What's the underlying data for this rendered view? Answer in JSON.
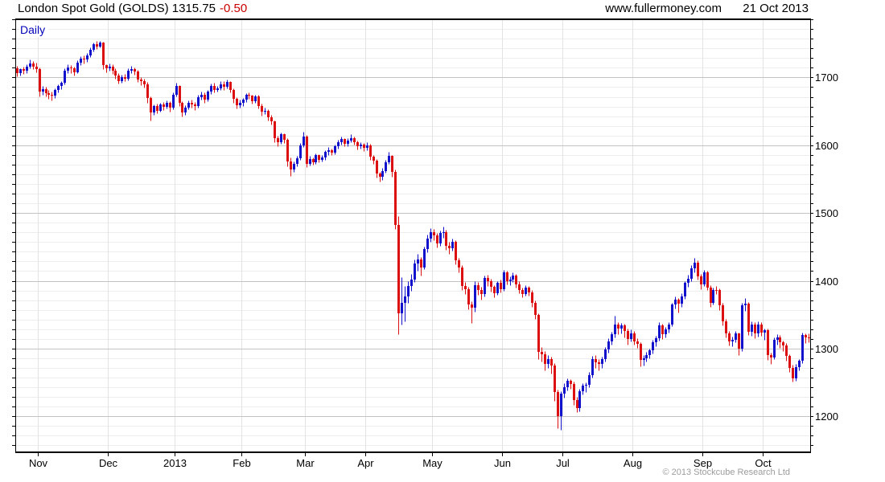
{
  "header": {
    "title": "London Spot Gold (GOLDS) 1315.75",
    "change": "-0.50",
    "website": "www.fullermoney.com",
    "date": "21 Oct 2013"
  },
  "chart": {
    "frequency_label": "Daily",
    "copyright": "© 2013 Stockcube Research Ltd"
  },
  "colors": {
    "up": "#1212cc",
    "down": "#dc1010",
    "grid_minor": "#ededed",
    "grid_major": "#c3c3c3",
    "grid_vertical": "#e3e3e3",
    "axis": "#000000",
    "label": "#000000"
  },
  "chart_data": {
    "type": "candlestick",
    "title": "London Spot Gold (GOLDS)",
    "frequency": "Daily",
    "last_price": 1315.75,
    "change": -0.5,
    "grid": true,
    "ylim": [
      1147,
      1787
    ],
    "y_ticks": [
      1200,
      1300,
      1400,
      1500,
      1600,
      1700
    ],
    "minor_grid_divisions_per_major": 7,
    "x_tick_labels": [
      "Nov",
      "Dec",
      "2013",
      "Feb",
      "Mar",
      "Apr",
      "May",
      "Jun",
      "Jul",
      "Aug",
      "Sep",
      "Oct"
    ],
    "month_start_indices": [
      7,
      29,
      50,
      71,
      91,
      110,
      131,
      153,
      172,
      194,
      216,
      235
    ],
    "bars_format": [
      "open",
      "high",
      "low",
      "close"
    ],
    "bars": [
      [
        1714,
        1717,
        1702,
        1707
      ],
      [
        1707,
        1714,
        1703,
        1712
      ],
      [
        1712,
        1716,
        1705,
        1710
      ],
      [
        1710,
        1719,
        1707,
        1716
      ],
      [
        1716,
        1726,
        1713,
        1721
      ],
      [
        1721,
        1724,
        1712,
        1716
      ],
      [
        1716,
        1722,
        1708,
        1712
      ],
      [
        1712,
        1715,
        1672,
        1679
      ],
      [
        1679,
        1687,
        1674,
        1683
      ],
      [
        1683,
        1686,
        1672,
        1677
      ],
      [
        1677,
        1682,
        1669,
        1675
      ],
      [
        1675,
        1679,
        1666,
        1673
      ],
      [
        1673,
        1684,
        1670,
        1681
      ],
      [
        1681,
        1690,
        1678,
        1687
      ],
      [
        1687,
        1695,
        1683,
        1692
      ],
      [
        1692,
        1713,
        1690,
        1710
      ],
      [
        1710,
        1719,
        1706,
        1715
      ],
      [
        1715,
        1718,
        1707,
        1713
      ],
      [
        1713,
        1716,
        1703,
        1708
      ],
      [
        1708,
        1725,
        1706,
        1722
      ],
      [
        1722,
        1731,
        1718,
        1728
      ],
      [
        1728,
        1732,
        1721,
        1726
      ],
      [
        1726,
        1736,
        1723,
        1733
      ],
      [
        1733,
        1744,
        1730,
        1741
      ],
      [
        1741,
        1752,
        1738,
        1749
      ],
      [
        1749,
        1754,
        1742,
        1746
      ],
      [
        1746,
        1754,
        1744,
        1751
      ],
      [
        1751,
        1753,
        1712,
        1718
      ],
      [
        1718,
        1720,
        1708,
        1714
      ],
      [
        1714,
        1721,
        1710,
        1716
      ],
      [
        1716,
        1719,
        1705,
        1710
      ],
      [
        1710,
        1713,
        1698,
        1703
      ],
      [
        1703,
        1706,
        1691,
        1695
      ],
      [
        1695,
        1704,
        1692,
        1701
      ],
      [
        1701,
        1705,
        1694,
        1698
      ],
      [
        1698,
        1713,
        1696,
        1710
      ],
      [
        1710,
        1717,
        1707,
        1712
      ],
      [
        1712,
        1715,
        1704,
        1709
      ],
      [
        1709,
        1711,
        1693,
        1697
      ],
      [
        1697,
        1700,
        1689,
        1694
      ],
      [
        1694,
        1698,
        1685,
        1690
      ],
      [
        1690,
        1693,
        1662,
        1670
      ],
      [
        1670,
        1672,
        1636,
        1648
      ],
      [
        1648,
        1660,
        1645,
        1658
      ],
      [
        1658,
        1661,
        1647,
        1651
      ],
      [
        1651,
        1663,
        1649,
        1660
      ],
      [
        1660,
        1664,
        1652,
        1657
      ],
      [
        1657,
        1666,
        1654,
        1663
      ],
      [
        1663,
        1665,
        1650,
        1655
      ],
      [
        1655,
        1678,
        1653,
        1675
      ],
      [
        1675,
        1692,
        1672,
        1687
      ],
      [
        1687,
        1689,
        1658,
        1662
      ],
      [
        1662,
        1665,
        1642,
        1648
      ],
      [
        1648,
        1659,
        1645,
        1656
      ],
      [
        1656,
        1666,
        1653,
        1662
      ],
      [
        1662,
        1667,
        1655,
        1660
      ],
      [
        1660,
        1664,
        1652,
        1658
      ],
      [
        1658,
        1674,
        1656,
        1671
      ],
      [
        1671,
        1679,
        1667,
        1675
      ],
      [
        1675,
        1678,
        1663,
        1667
      ],
      [
        1667,
        1682,
        1665,
        1679
      ],
      [
        1679,
        1691,
        1676,
        1688
      ],
      [
        1688,
        1692,
        1678,
        1682
      ],
      [
        1682,
        1688,
        1679,
        1684
      ],
      [
        1684,
        1695,
        1681,
        1690
      ],
      [
        1690,
        1694,
        1682,
        1686
      ],
      [
        1686,
        1697,
        1684,
        1693
      ],
      [
        1693,
        1695,
        1678,
        1682
      ],
      [
        1682,
        1684,
        1663,
        1668
      ],
      [
        1668,
        1671,
        1654,
        1659
      ],
      [
        1659,
        1667,
        1656,
        1662
      ],
      [
        1662,
        1670,
        1658,
        1667
      ],
      [
        1667,
        1677,
        1664,
        1674
      ],
      [
        1674,
        1678,
        1668,
        1673
      ],
      [
        1673,
        1675,
        1661,
        1665
      ],
      [
        1665,
        1675,
        1662,
        1672
      ],
      [
        1672,
        1674,
        1654,
        1658
      ],
      [
        1658,
        1661,
        1644,
        1649
      ],
      [
        1649,
        1655,
        1646,
        1651
      ],
      [
        1651,
        1653,
        1637,
        1641
      ],
      [
        1641,
        1645,
        1631,
        1635
      ],
      [
        1635,
        1637,
        1604,
        1610
      ],
      [
        1610,
        1614,
        1598,
        1605
      ],
      [
        1605,
        1619,
        1602,
        1616
      ],
      [
        1616,
        1618,
        1603,
        1608
      ],
      [
        1608,
        1610,
        1569,
        1576
      ],
      [
        1576,
        1582,
        1555,
        1564
      ],
      [
        1564,
        1576,
        1561,
        1572
      ],
      [
        1572,
        1584,
        1569,
        1581
      ],
      [
        1581,
        1603,
        1579,
        1600
      ],
      [
        1600,
        1620,
        1597,
        1613
      ],
      [
        1613,
        1615,
        1568,
        1572
      ],
      [
        1572,
        1584,
        1570,
        1580
      ],
      [
        1580,
        1582,
        1571,
        1575
      ],
      [
        1575,
        1588,
        1573,
        1585
      ],
      [
        1585,
        1587,
        1575,
        1579
      ],
      [
        1579,
        1586,
        1576,
        1582
      ],
      [
        1582,
        1593,
        1579,
        1590
      ],
      [
        1590,
        1597,
        1586,
        1593
      ],
      [
        1593,
        1595,
        1585,
        1589
      ],
      [
        1589,
        1601,
        1587,
        1598
      ],
      [
        1598,
        1608,
        1595,
        1605
      ],
      [
        1605,
        1613,
        1601,
        1609
      ],
      [
        1609,
        1611,
        1598,
        1602
      ],
      [
        1602,
        1610,
        1599,
        1607
      ],
      [
        1607,
        1616,
        1604,
        1611
      ],
      [
        1611,
        1613,
        1601,
        1605
      ],
      [
        1605,
        1607,
        1594,
        1598
      ],
      [
        1598,
        1605,
        1595,
        1601
      ],
      [
        1601,
        1603,
        1592,
        1596
      ],
      [
        1596,
        1604,
        1593,
        1600
      ],
      [
        1600,
        1602,
        1579,
        1583
      ],
      [
        1583,
        1586,
        1572,
        1577
      ],
      [
        1577,
        1580,
        1552,
        1558
      ],
      [
        1558,
        1561,
        1546,
        1553
      ],
      [
        1553,
        1566,
        1549,
        1562
      ],
      [
        1562,
        1578,
        1559,
        1575
      ],
      [
        1575,
        1590,
        1572,
        1584
      ],
      [
        1584,
        1586,
        1554,
        1561
      ],
      [
        1561,
        1564,
        1476,
        1483
      ],
      [
        1483,
        1495,
        1321,
        1352
      ],
      [
        1352,
        1405,
        1336,
        1368
      ],
      [
        1368,
        1392,
        1340,
        1377
      ],
      [
        1377,
        1399,
        1368,
        1392
      ],
      [
        1392,
        1410,
        1385,
        1402
      ],
      [
        1402,
        1431,
        1398,
        1426
      ],
      [
        1426,
        1440,
        1415,
        1431
      ],
      [
        1431,
        1435,
        1408,
        1420
      ],
      [
        1420,
        1450,
        1417,
        1447
      ],
      [
        1447,
        1468,
        1442,
        1462
      ],
      [
        1462,
        1478,
        1458,
        1472
      ],
      [
        1472,
        1477,
        1460,
        1467
      ],
      [
        1467,
        1471,
        1449,
        1455
      ],
      [
        1455,
        1474,
        1452,
        1470
      ],
      [
        1470,
        1480,
        1464,
        1472
      ],
      [
        1472,
        1475,
        1446,
        1452
      ],
      [
        1452,
        1457,
        1440,
        1448
      ],
      [
        1448,
        1462,
        1444,
        1458
      ],
      [
        1458,
        1460,
        1424,
        1430
      ],
      [
        1430,
        1434,
        1413,
        1420
      ],
      [
        1420,
        1423,
        1386,
        1392
      ],
      [
        1392,
        1398,
        1380,
        1388
      ],
      [
        1388,
        1391,
        1358,
        1365
      ],
      [
        1365,
        1370,
        1338,
        1360
      ],
      [
        1360,
        1399,
        1355,
        1394
      ],
      [
        1394,
        1398,
        1379,
        1387
      ],
      [
        1387,
        1391,
        1372,
        1380
      ],
      [
        1380,
        1408,
        1377,
        1404
      ],
      [
        1404,
        1409,
        1392,
        1399
      ],
      [
        1399,
        1403,
        1384,
        1391
      ],
      [
        1391,
        1394,
        1376,
        1382
      ],
      [
        1382,
        1400,
        1379,
        1397
      ],
      [
        1397,
        1402,
        1383,
        1388
      ],
      [
        1388,
        1416,
        1385,
        1412
      ],
      [
        1412,
        1415,
        1395,
        1399
      ],
      [
        1399,
        1406,
        1394,
        1402
      ],
      [
        1402,
        1412,
        1398,
        1408
      ],
      [
        1408,
        1410,
        1390,
        1395
      ],
      [
        1395,
        1399,
        1382,
        1387
      ],
      [
        1387,
        1390,
        1376,
        1381
      ],
      [
        1381,
        1394,
        1378,
        1390
      ],
      [
        1390,
        1392,
        1378,
        1383
      ],
      [
        1383,
        1386,
        1362,
        1368
      ],
      [
        1368,
        1371,
        1344,
        1350
      ],
      [
        1350,
        1352,
        1285,
        1295
      ],
      [
        1295,
        1302,
        1281,
        1292
      ],
      [
        1292,
        1296,
        1268,
        1277
      ],
      [
        1277,
        1290,
        1272,
        1285
      ],
      [
        1285,
        1288,
        1263,
        1275
      ],
      [
        1275,
        1278,
        1223,
        1236
      ],
      [
        1236,
        1239,
        1183,
        1200
      ],
      [
        1200,
        1237,
        1180,
        1234
      ],
      [
        1234,
        1249,
        1228,
        1243
      ],
      [
        1243,
        1256,
        1238,
        1252
      ],
      [
        1252,
        1255,
        1241,
        1248
      ],
      [
        1248,
        1251,
        1217,
        1224
      ],
      [
        1224,
        1229,
        1206,
        1212
      ],
      [
        1212,
        1241,
        1208,
        1237
      ],
      [
        1237,
        1249,
        1232,
        1245
      ],
      [
        1245,
        1250,
        1236,
        1247
      ],
      [
        1247,
        1266,
        1243,
        1261
      ],
      [
        1261,
        1289,
        1257,
        1285
      ],
      [
        1285,
        1291,
        1271,
        1280
      ],
      [
        1280,
        1284,
        1268,
        1277
      ],
      [
        1277,
        1288,
        1272,
        1284
      ],
      [
        1284,
        1302,
        1281,
        1299
      ],
      [
        1299,
        1315,
        1294,
        1311
      ],
      [
        1311,
        1325,
        1306,
        1321
      ],
      [
        1321,
        1348,
        1317,
        1336
      ],
      [
        1336,
        1339,
        1321,
        1329
      ],
      [
        1329,
        1338,
        1322,
        1334
      ],
      [
        1334,
        1337,
        1316,
        1326
      ],
      [
        1326,
        1329,
        1306,
        1314
      ],
      [
        1314,
        1328,
        1310,
        1323
      ],
      [
        1323,
        1326,
        1306,
        1311
      ],
      [
        1311,
        1315,
        1301,
        1307
      ],
      [
        1307,
        1309,
        1274,
        1283
      ],
      [
        1283,
        1291,
        1275,
        1286
      ],
      [
        1286,
        1295,
        1281,
        1290
      ],
      [
        1290,
        1300,
        1286,
        1297
      ],
      [
        1297,
        1313,
        1293,
        1309
      ],
      [
        1309,
        1319,
        1304,
        1315
      ],
      [
        1315,
        1339,
        1312,
        1334
      ],
      [
        1334,
        1337,
        1314,
        1321
      ],
      [
        1321,
        1332,
        1317,
        1328
      ],
      [
        1328,
        1339,
        1324,
        1336
      ],
      [
        1336,
        1368,
        1333,
        1365
      ],
      [
        1365,
        1377,
        1359,
        1372
      ],
      [
        1372,
        1375,
        1353,
        1366
      ],
      [
        1366,
        1382,
        1362,
        1377
      ],
      [
        1377,
        1400,
        1373,
        1397
      ],
      [
        1397,
        1409,
        1391,
        1403
      ],
      [
        1403,
        1423,
        1399,
        1418
      ],
      [
        1418,
        1434,
        1413,
        1427
      ],
      [
        1427,
        1430,
        1402,
        1407
      ],
      [
        1407,
        1410,
        1388,
        1395
      ],
      [
        1395,
        1416,
        1392,
        1412
      ],
      [
        1412,
        1415,
        1386,
        1390
      ],
      [
        1390,
        1394,
        1361,
        1368
      ],
      [
        1368,
        1390,
        1365,
        1387
      ],
      [
        1387,
        1392,
        1381,
        1386
      ],
      [
        1386,
        1389,
        1357,
        1364
      ],
      [
        1364,
        1367,
        1334,
        1340
      ],
      [
        1340,
        1344,
        1316,
        1322
      ],
      [
        1322,
        1326,
        1305,
        1310
      ],
      [
        1310,
        1318,
        1304,
        1313
      ],
      [
        1313,
        1326,
        1309,
        1322
      ],
      [
        1322,
        1324,
        1291,
        1300
      ],
      [
        1300,
        1368,
        1296,
        1364
      ],
      [
        1364,
        1375,
        1356,
        1366
      ],
      [
        1366,
        1369,
        1320,
        1325
      ],
      [
        1325,
        1340,
        1319,
        1336
      ],
      [
        1336,
        1339,
        1315,
        1322
      ],
      [
        1322,
        1340,
        1318,
        1336
      ],
      [
        1336,
        1339,
        1319,
        1324
      ],
      [
        1324,
        1330,
        1313,
        1327
      ],
      [
        1327,
        1330,
        1283,
        1290
      ],
      [
        1290,
        1294,
        1277,
        1287
      ],
      [
        1287,
        1317,
        1284,
        1313
      ],
      [
        1313,
        1321,
        1306,
        1317
      ],
      [
        1317,
        1320,
        1301,
        1309
      ],
      [
        1309,
        1312,
        1296,
        1305
      ],
      [
        1305,
        1308,
        1282,
        1289
      ],
      [
        1289,
        1292,
        1265,
        1272
      ],
      [
        1272,
        1276,
        1251,
        1256
      ],
      [
        1256,
        1277,
        1252,
        1273
      ],
      [
        1273,
        1285,
        1268,
        1282
      ],
      [
        1282,
        1324,
        1279,
        1320
      ],
      [
        1320,
        1323,
        1308,
        1316
      ],
      [
        1316,
        1322,
        1309,
        1315.75
      ]
    ]
  }
}
